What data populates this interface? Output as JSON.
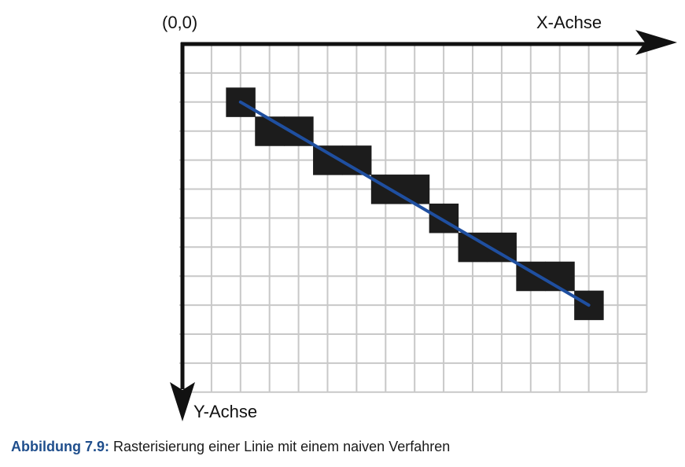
{
  "diagram": {
    "origin_label": "(0,0)",
    "x_axis_label": "X-Achse",
    "y_axis_label": "Y-Achse",
    "grid": {
      "columns": 16,
      "rows": 12
    },
    "line": {
      "start": [
        2,
        2
      ],
      "end": [
        14,
        9
      ]
    },
    "raster_pixels": [
      [
        2,
        2
      ],
      [
        3,
        3
      ],
      [
        4,
        3
      ],
      [
        5,
        4
      ],
      [
        6,
        4
      ],
      [
        7,
        5
      ],
      [
        8,
        5
      ],
      [
        9,
        6
      ],
      [
        10,
        7
      ],
      [
        11,
        7
      ],
      [
        12,
        8
      ],
      [
        13,
        8
      ],
      [
        14,
        9
      ]
    ],
    "colors": {
      "grid": "#c8c8c8",
      "axis": "#111111",
      "pixel": "#1c1c1c",
      "line": "#1f4fa0"
    }
  },
  "caption": {
    "label": "Abbildung 7.9:",
    "text": "Rasterisierung einer Linie mit einem naiven Verfahren"
  }
}
